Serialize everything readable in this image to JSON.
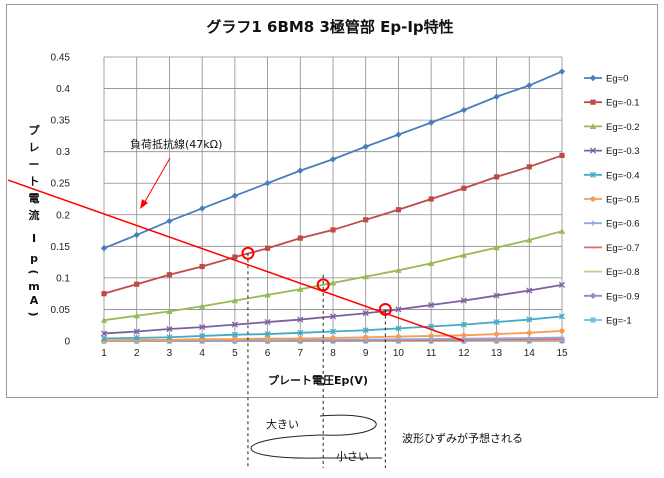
{
  "chart_data": {
    "type": "line",
    "title": "グラフ1  6BM8  3極管部  Ep-Ip特性",
    "xlabel": "プレート電圧Ep(V)",
    "ylabel": "プレート電流 I p(mA)",
    "x": [
      1,
      2,
      3,
      4,
      5,
      6,
      7,
      8,
      9,
      10,
      11,
      12,
      13,
      14,
      15
    ],
    "xlim": [
      1,
      15
    ],
    "ylim": [
      0,
      0.45
    ],
    "yticks": [
      "0",
      "0.05",
      "0.1",
      "0.15",
      "0.2",
      "0.25",
      "0.3",
      "0.35",
      "0.4",
      "0.45"
    ],
    "grid": true,
    "legend_position": "right",
    "series": [
      {
        "name": "Eg=0",
        "color": "#4a7ebb",
        "marker": "diamond",
        "values": [
          0.147,
          0.168,
          0.19,
          0.21,
          0.23,
          0.25,
          0.27,
          0.288,
          0.308,
          0.327,
          0.346,
          0.366,
          0.387,
          0.405,
          0.427
        ]
      },
      {
        "name": "Eg=-0.1",
        "color": "#be4b48",
        "marker": "square",
        "values": [
          0.075,
          0.09,
          0.105,
          0.118,
          0.133,
          0.147,
          0.163,
          0.176,
          0.192,
          0.208,
          0.225,
          0.242,
          0.26,
          0.276,
          0.294
        ]
      },
      {
        "name": "Eg=-0.2",
        "color": "#98b954",
        "marker": "triangle",
        "values": [
          0.033,
          0.04,
          0.047,
          0.055,
          0.064,
          0.073,
          0.082,
          0.092,
          0.102,
          0.112,
          0.123,
          0.136,
          0.148,
          0.16,
          0.174
        ]
      },
      {
        "name": "Eg=-0.3",
        "color": "#7d60a0",
        "marker": "x",
        "values": [
          0.012,
          0.015,
          0.019,
          0.022,
          0.026,
          0.03,
          0.034,
          0.039,
          0.044,
          0.05,
          0.057,
          0.064,
          0.072,
          0.08,
          0.089
        ]
      },
      {
        "name": "Eg=-0.4",
        "color": "#46aac5",
        "marker": "star",
        "values": [
          0.004,
          0.005,
          0.006,
          0.008,
          0.01,
          0.011,
          0.013,
          0.015,
          0.017,
          0.02,
          0.023,
          0.026,
          0.03,
          0.034,
          0.039
        ]
      },
      {
        "name": "Eg=-0.5",
        "color": "#f59d56",
        "marker": "circle",
        "values": [
          0.001,
          0.002,
          0.002,
          0.003,
          0.003,
          0.004,
          0.004,
          0.005,
          0.006,
          0.007,
          0.008,
          0.009,
          0.011,
          0.013,
          0.016
        ]
      },
      {
        "name": "Eg=-0.6",
        "color": "#8ea9db",
        "marker": "plus",
        "values": [
          0.0005,
          0.0007,
          0.0009,
          0.001,
          0.0012,
          0.0015,
          0.0018,
          0.002,
          0.0024,
          0.0028,
          0.0032,
          0.0037,
          0.0042,
          0.0048,
          0.0055
        ]
      },
      {
        "name": "Eg=-0.7",
        "color": "#e26b6b",
        "marker": "dash",
        "values": [
          0.0002,
          0.0003,
          0.0004,
          0.0005,
          0.0006,
          0.0007,
          0.0008,
          0.0009,
          0.0011,
          0.0013,
          0.0015,
          0.0017,
          0.002,
          0.0023,
          0.0026
        ]
      },
      {
        "name": "Eg=-0.8",
        "color": "#b5d18a",
        "marker": "dash",
        "values": [
          0.0001,
          0.0001,
          0.0002,
          0.0002,
          0.0003,
          0.0003,
          0.0004,
          0.0005,
          0.0005,
          0.0006,
          0.0007,
          0.0008,
          0.0009,
          0.001,
          0.0012
        ]
      },
      {
        "name": "Eg=-0.9",
        "color": "#9c88b9",
        "marker": "diamond",
        "values": [
          0.0,
          0.0001,
          0.0001,
          0.0001,
          0.0001,
          0.0002,
          0.0002,
          0.0002,
          0.0003,
          0.0003,
          0.0003,
          0.0004,
          0.0004,
          0.0005,
          0.0005
        ]
      },
      {
        "name": "Eg=-1",
        "color": "#6fc0d8",
        "marker": "square",
        "values": [
          0,
          0,
          0,
          0,
          0,
          0,
          0.0001,
          0.0001,
          0.0001,
          0.0001,
          0.0001,
          0.0001,
          0.0002,
          0.0002,
          0.0002
        ]
      }
    ],
    "load_line": {
      "label": "負荷抵抗線(47kΩ)",
      "color": "#ff0000",
      "from": [
        0,
        0.255
      ],
      "to": [
        12,
        0.0
      ]
    },
    "operating_points": [
      {
        "x": 5.4,
        "y": 0.139
      },
      {
        "x": 7.7,
        "y": 0.089
      },
      {
        "x": 9.6,
        "y": 0.05
      }
    ],
    "annotations": {
      "large": "大きい",
      "small": "小さい",
      "distortion": "波形ひずみが予想される"
    }
  }
}
